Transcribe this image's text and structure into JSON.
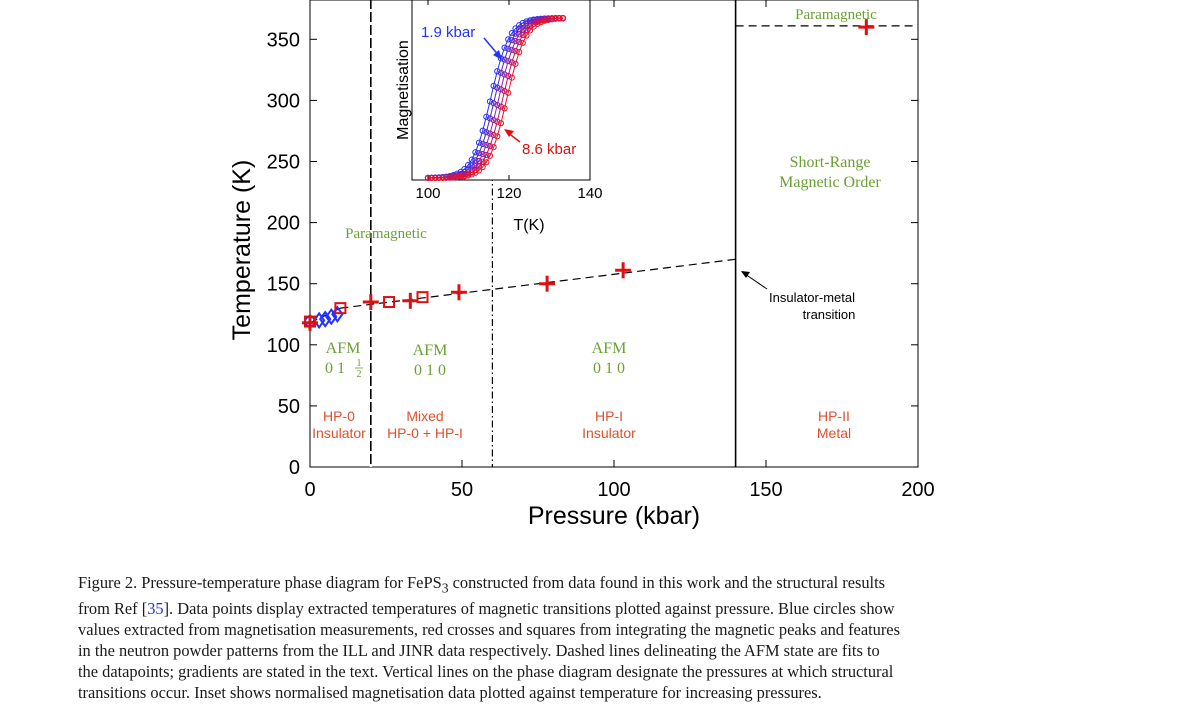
{
  "chart_data": [
    {
      "type": "scatter",
      "xlabel": "Pressure (kbar)",
      "ylabel": "Temperature (K)",
      "xlim": [
        0,
        200
      ],
      "ylim": [
        0,
        370
      ],
      "xticks": [
        0,
        50,
        100,
        150,
        200
      ],
      "yticks": [
        0,
        50,
        100,
        150,
        200,
        250,
        300,
        350
      ],
      "grid": false,
      "series": [
        {
          "marker": "diamond",
          "color": "#2233ff",
          "x": [
            3,
            5,
            7,
            9
          ],
          "y": [
            120,
            121,
            123,
            125
          ]
        },
        {
          "marker": "circle",
          "color": "#2233ff",
          "x": [
            0
          ],
          "y": [
            119
          ]
        },
        {
          "marker": "square",
          "color": "#dd1111",
          "x": [
            0,
            10,
            26,
            37
          ],
          "y": [
            119,
            130,
            135,
            139
          ]
        },
        {
          "marker": "cross",
          "color": "#dd1111",
          "x": [
            0,
            20,
            33,
            49,
            78,
            103,
            183
          ],
          "y": [
            118,
            135,
            136,
            143,
            150,
            161,
            360
          ]
        }
      ],
      "fit_lines": [
        {
          "style": "dashed",
          "x": [
            0,
            10
          ],
          "y": [
            118,
            130
          ]
        },
        {
          "style": "dashed",
          "x": [
            10,
            140
          ],
          "y": [
            130,
            170
          ]
        },
        {
          "style": "dashed",
          "x": [
            140,
            200
          ],
          "y": [
            361,
            361
          ]
        }
      ],
      "phase_boundaries": [
        {
          "x": 20,
          "style": "solid"
        },
        {
          "x": 60,
          "style": "dashdot"
        },
        {
          "x": 140,
          "style": "solid"
        }
      ],
      "dashdot_lines": [
        {
          "x": 20
        }
      ],
      "annotations": {
        "paramagnetic_left": "Paramagnetic",
        "paramagnetic_right": "Paramagnetic",
        "short_range_1": "Short-Range",
        "short_range_2": "Magnetic Order",
        "afm_a_1": "AFM",
        "afm_a_2": "0 1",
        "afm_a_frac_num": "1",
        "afm_a_frac_den": "2",
        "afm_b_1": "AFM",
        "afm_b_2": "0 1 0",
        "afm_c_1": "AFM",
        "afm_c_2": "0 1 0",
        "hp0_1": "HP-0",
        "hp0_2": "Insulator",
        "mixed_1": "Mixed",
        "mixed_2": "HP-0 + HP-I",
        "hpi_1": "HP-I",
        "hpi_2": "Insulator",
        "hpii_1": "HP-II",
        "hpii_2": "Metal",
        "imt_1": "Insulator-metal",
        "imt_2": "transition"
      },
      "colors": {
        "green": "#6aa033",
        "orange": "#e0502a",
        "blue": "#2233ff",
        "red": "#dd1111"
      }
    },
    {
      "type": "line",
      "xlabel": "T(K)",
      "ylabel": "Magnetisation",
      "xlim": [
        100,
        140
      ],
      "xticks": [
        100,
        120,
        140
      ],
      "series_labels": {
        "low": "1.9 kbar",
        "high": "8.6 kbar"
      },
      "series": [
        {
          "color": "#2233ff",
          "midpoint": 115.5
        },
        {
          "color": "#5522cc",
          "midpoint": 116.5
        },
        {
          "color": "#8822aa",
          "midpoint": 117.5
        },
        {
          "color": "#bb1166",
          "midpoint": 118.5
        },
        {
          "color": "#ee1122",
          "midpoint": 119.5
        }
      ]
    }
  ],
  "caption": {
    "line1": "Figure 2.   Pressure-temperature phase diagram for FePS",
    "sub3": "3",
    "line1b": " constructed from data found in this work and the structural results",
    "line2a": "from Ref [",
    "ref": "35",
    "line2b": "]. Data points display extracted temperatures of magnetic transitions plotted against pressure. Blue circles show",
    "line3": "values extracted from magnetisation measurements, red crosses and squares from integrating the magnetic peaks and features",
    "line4": "in the neutron powder patterns from the ILL and JINR data respectively. Dashed lines delineating the AFM state are fits to",
    "line5": "the datapoints; gradients are stated in the text. Vertical lines on the phase diagram designate the pressures at which structural",
    "line6": "transitions occur. Inset shows normalised magnetisation data plotted against temperature for increasing pressures."
  }
}
